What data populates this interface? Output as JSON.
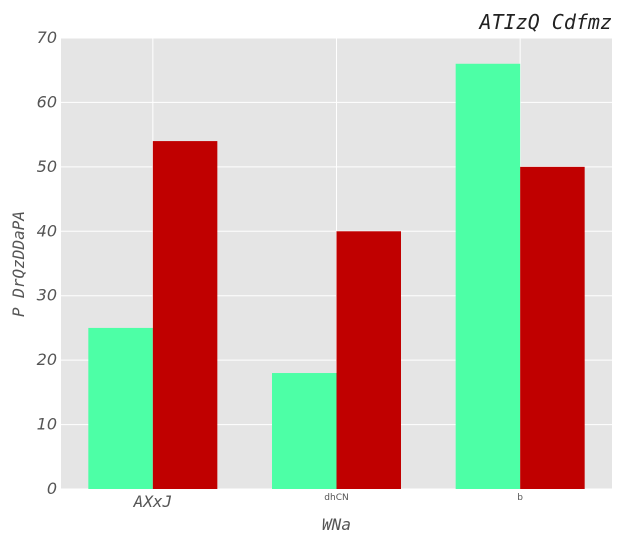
{
  "chart_data": {
    "type": "bar",
    "title": "ATIzQ Cdfmz",
    "xlabel": "WNa",
    "ylabel": "P DrQzDDaPA",
    "categories": [
      "AXxJ",
      "dhCN",
      "b"
    ],
    "category_label_styles": [
      "large-italic-mono",
      "small-sans",
      "small-sans"
    ],
    "series": [
      {
        "values": [
          25,
          18,
          66
        ],
        "color": "#4dffa6"
      },
      {
        "values": [
          54,
          40,
          50
        ],
        "color": "#c00000"
      }
    ],
    "ylim": [
      0,
      70
    ],
    "yticks": [
      "0",
      "10",
      "20",
      "30",
      "40",
      "50",
      "60",
      "70"
    ],
    "grid": true,
    "background": "#e5e5e5",
    "grid_color": "#ffffff"
  }
}
